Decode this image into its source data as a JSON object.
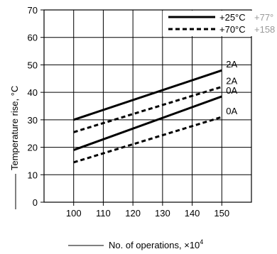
{
  "chart_data": {
    "type": "line",
    "x": [
      100,
      150
    ],
    "xlim": [
      90,
      160
    ],
    "ylim": [
      0,
      70
    ],
    "x_ticks": [
      "100",
      "110",
      "120",
      "130",
      "140",
      "150"
    ],
    "y_ticks": [
      "0",
      "10",
      "20",
      "30",
      "40",
      "50",
      "60",
      "70"
    ],
    "xlabel": "No. of operations, ×10",
    "xlabel_sup": "4",
    "ylabel": "Temperature rise, °C",
    "grid": true,
    "legend_position": "top-right",
    "legend": [
      {
        "label": "+25°C",
        "extra": "+77°",
        "style": "solid"
      },
      {
        "label": "+70°C",
        "extra": "+158",
        "style": "dashed"
      }
    ],
    "series": [
      {
        "label": "2A",
        "style": "solid",
        "values": [
          30,
          48
        ]
      },
      {
        "label": "2A",
        "style": "dashed",
        "values": [
          25.5,
          42
        ]
      },
      {
        "label": "0A",
        "style": "solid",
        "values": [
          19,
          38.5
        ]
      },
      {
        "label": "0A",
        "style": "dashed",
        "values": [
          14.5,
          31
        ]
      }
    ],
    "colors": {
      "line": "#000000",
      "grid": "#000000",
      "ghost": "#9a9a9a"
    }
  }
}
